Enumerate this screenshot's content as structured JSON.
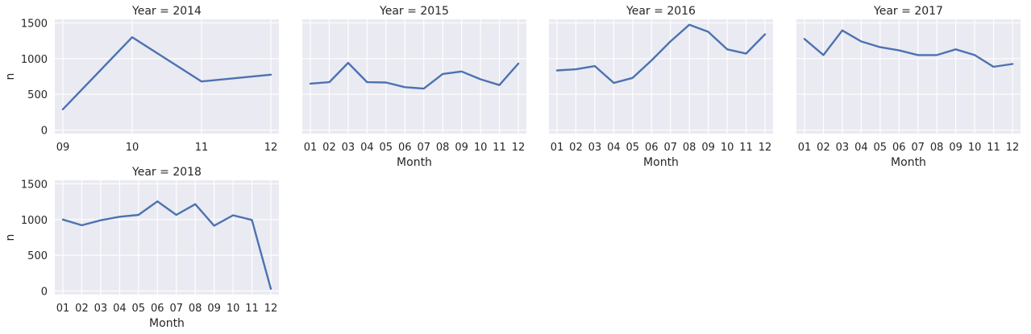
{
  "chart_data": {
    "type": "line",
    "facet_variable": "Year",
    "y_axis": {
      "label": "n",
      "ylim": [
        -50,
        1550
      ],
      "ticks": [
        0,
        500,
        1000,
        1500
      ]
    },
    "x_axis": {
      "label": "Month"
    },
    "grid": true,
    "series_color": "#4c72b0",
    "background_color": "#eaeaf2",
    "facets": [
      {
        "title": "Year = 2014",
        "categories": [
          "09",
          "10",
          "11",
          "12"
        ],
        "values": [
          290,
          1300,
          680,
          775
        ],
        "show_y_ticks": true,
        "show_x_label": false
      },
      {
        "title": "Year = 2015",
        "categories": [
          "01",
          "02",
          "03",
          "04",
          "05",
          "06",
          "07",
          "08",
          "09",
          "10",
          "11",
          "12"
        ],
        "values": [
          650,
          670,
          940,
          670,
          665,
          600,
          580,
          785,
          820,
          710,
          630,
          930
        ],
        "show_y_ticks": false,
        "show_x_label": true
      },
      {
        "title": "Year = 2016",
        "categories": [
          "01",
          "02",
          "03",
          "04",
          "05",
          "06",
          "07",
          "08",
          "09",
          "10",
          "11",
          "12"
        ],
        "values": [
          835,
          850,
          895,
          660,
          730,
          975,
          1240,
          1475,
          1375,
          1130,
          1070,
          1340
        ],
        "show_y_ticks": false,
        "show_x_label": true
      },
      {
        "title": "Year = 2017",
        "categories": [
          "01",
          "02",
          "03",
          "04",
          "05",
          "06",
          "07",
          "08",
          "09",
          "10",
          "11",
          "12"
        ],
        "values": [
          1275,
          1050,
          1395,
          1240,
          1160,
          1115,
          1050,
          1050,
          1130,
          1050,
          885,
          925
        ],
        "show_y_ticks": false,
        "show_x_label": true
      },
      {
        "title": "Year = 2018",
        "categories": [
          "01",
          "02",
          "03",
          "04",
          "05",
          "06",
          "07",
          "08",
          "09",
          "10",
          "11",
          "12"
        ],
        "values": [
          1000,
          920,
          990,
          1040,
          1065,
          1255,
          1065,
          1215,
          915,
          1060,
          995,
          30
        ],
        "show_y_ticks": true,
        "show_x_label": true
      }
    ]
  }
}
